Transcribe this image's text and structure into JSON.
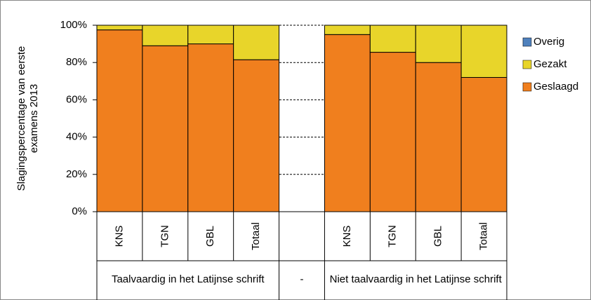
{
  "chart_data": {
    "type": "stacked-bar",
    "ylabel": [
      "Slagingspercentage van eerste",
      "examens 2013"
    ],
    "groups": [
      {
        "label": "Taalvaardig in het Latijnse schrift",
        "categories": [
          "KNS",
          "TGN",
          "GBL",
          "Totaal"
        ]
      },
      {
        "label": "-",
        "categories": [
          null
        ]
      },
      {
        "label": "Niet taalvaardig in het Latijnse schrift",
        "categories": [
          "KNS",
          "TGN",
          "GBL",
          "Totaal"
        ]
      }
    ],
    "series": [
      {
        "name": "Geslaagd",
        "color": "#f07f1e",
        "values": [
          97.5,
          89,
          90,
          81.5,
          null,
          95,
          85.5,
          80,
          72
        ]
      },
      {
        "name": "Gezakt",
        "color": "#e8d52a",
        "values": [
          2.5,
          11,
          10,
          18.5,
          null,
          5,
          14.5,
          20,
          28
        ]
      },
      {
        "name": "Overig",
        "color": "#4f81bd",
        "values": [
          0,
          0,
          0,
          0,
          null,
          0,
          0,
          0,
          0
        ]
      }
    ],
    "ylim": [
      0,
      100
    ],
    "yticks": [
      {
        "value": 0,
        "label": "0%"
      },
      {
        "value": 20,
        "label": "20%"
      },
      {
        "value": 40,
        "label": "40%"
      },
      {
        "value": 60,
        "label": "60%"
      },
      {
        "value": 80,
        "label": "80%"
      },
      {
        "value": 100,
        "label": "100%"
      }
    ],
    "grid": true,
    "legend": "right"
  }
}
